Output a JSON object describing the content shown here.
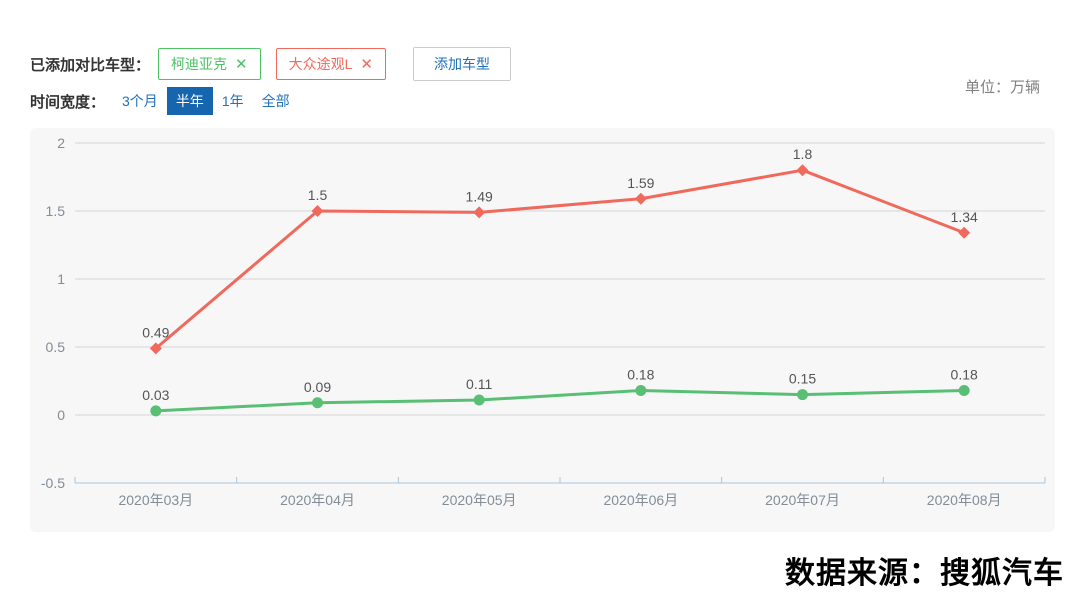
{
  "header": {
    "added_label": "已添加对比车型：",
    "tags": [
      {
        "label": "柯迪亚克",
        "close": "✕",
        "color": "#4dc266"
      },
      {
        "label": "大众途观L",
        "close": "✕",
        "color": "#f0695c"
      }
    ],
    "add_button": "添加车型",
    "unit_label": "单位：万辆",
    "time_label": "时间宽度：",
    "time_options": [
      {
        "label": "3个月",
        "selected": false
      },
      {
        "label": "半年",
        "selected": true
      },
      {
        "label": "1年",
        "selected": false
      },
      {
        "label": "全部",
        "selected": false
      }
    ]
  },
  "chart_data": {
    "type": "line",
    "categories": [
      "2020年03月",
      "2020年04月",
      "2020年05月",
      "2020年06月",
      "2020年07月",
      "2020年08月"
    ],
    "series": [
      {
        "name": "柯迪亚克",
        "color": "#58bf74",
        "marker": "circle",
        "values": [
          0.03,
          0.09,
          0.11,
          0.18,
          0.15,
          0.18
        ]
      },
      {
        "name": "大众途观L",
        "color": "#f0695c",
        "marker": "diamond",
        "values": [
          0.49,
          1.5,
          1.49,
          1.59,
          1.8,
          1.34
        ]
      }
    ],
    "ylim": [
      -0.5,
      2
    ],
    "yticks": [
      2,
      1.5,
      1,
      0.5,
      0,
      -0.5
    ],
    "unit": "万辆",
    "grid": true,
    "legend_position": "none",
    "data_labels": true,
    "colors": {
      "grid_line": "#d6d6d6",
      "axis_line": "#aac6de",
      "tick_label": "#828d98",
      "value_label": "#555555",
      "plot_background": "#f7f7f7"
    }
  },
  "footer": {
    "source": "数据来源：搜狐汽车"
  }
}
